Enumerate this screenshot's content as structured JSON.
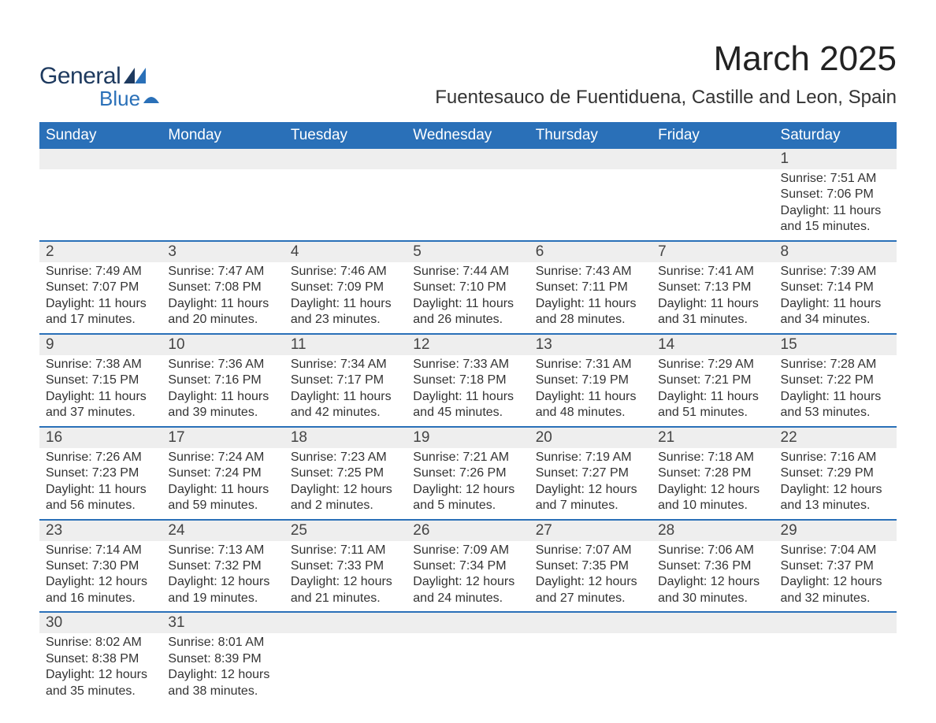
{
  "logo": {
    "text1": "General",
    "text2": "Blue"
  },
  "title": "March 2025",
  "location": "Fuentesauco de Fuentiduena, Castille and Leon, Spain",
  "colors": {
    "header_bg": "#2a70b8",
    "header_text": "#ffffff",
    "daynum_bg": "#eeeeee",
    "row_border": "#2a70b8",
    "body_text": "#333333",
    "logo_dark": "#1e3a5f",
    "logo_blue": "#2a70b8"
  },
  "weekdays": [
    "Sunday",
    "Monday",
    "Tuesday",
    "Wednesday",
    "Thursday",
    "Friday",
    "Saturday"
  ],
  "weeks": [
    [
      null,
      null,
      null,
      null,
      null,
      null,
      {
        "d": "1",
        "sr": "Sunrise: 7:51 AM",
        "ss": "Sunset: 7:06 PM",
        "dl": "Daylight: 11 hours and 15 minutes."
      }
    ],
    [
      {
        "d": "2",
        "sr": "Sunrise: 7:49 AM",
        "ss": "Sunset: 7:07 PM",
        "dl": "Daylight: 11 hours and 17 minutes."
      },
      {
        "d": "3",
        "sr": "Sunrise: 7:47 AM",
        "ss": "Sunset: 7:08 PM",
        "dl": "Daylight: 11 hours and 20 minutes."
      },
      {
        "d": "4",
        "sr": "Sunrise: 7:46 AM",
        "ss": "Sunset: 7:09 PM",
        "dl": "Daylight: 11 hours and 23 minutes."
      },
      {
        "d": "5",
        "sr": "Sunrise: 7:44 AM",
        "ss": "Sunset: 7:10 PM",
        "dl": "Daylight: 11 hours and 26 minutes."
      },
      {
        "d": "6",
        "sr": "Sunrise: 7:43 AM",
        "ss": "Sunset: 7:11 PM",
        "dl": "Daylight: 11 hours and 28 minutes."
      },
      {
        "d": "7",
        "sr": "Sunrise: 7:41 AM",
        "ss": "Sunset: 7:13 PM",
        "dl": "Daylight: 11 hours and 31 minutes."
      },
      {
        "d": "8",
        "sr": "Sunrise: 7:39 AM",
        "ss": "Sunset: 7:14 PM",
        "dl": "Daylight: 11 hours and 34 minutes."
      }
    ],
    [
      {
        "d": "9",
        "sr": "Sunrise: 7:38 AM",
        "ss": "Sunset: 7:15 PM",
        "dl": "Daylight: 11 hours and 37 minutes."
      },
      {
        "d": "10",
        "sr": "Sunrise: 7:36 AM",
        "ss": "Sunset: 7:16 PM",
        "dl": "Daylight: 11 hours and 39 minutes."
      },
      {
        "d": "11",
        "sr": "Sunrise: 7:34 AM",
        "ss": "Sunset: 7:17 PM",
        "dl": "Daylight: 11 hours and 42 minutes."
      },
      {
        "d": "12",
        "sr": "Sunrise: 7:33 AM",
        "ss": "Sunset: 7:18 PM",
        "dl": "Daylight: 11 hours and 45 minutes."
      },
      {
        "d": "13",
        "sr": "Sunrise: 7:31 AM",
        "ss": "Sunset: 7:19 PM",
        "dl": "Daylight: 11 hours and 48 minutes."
      },
      {
        "d": "14",
        "sr": "Sunrise: 7:29 AM",
        "ss": "Sunset: 7:21 PM",
        "dl": "Daylight: 11 hours and 51 minutes."
      },
      {
        "d": "15",
        "sr": "Sunrise: 7:28 AM",
        "ss": "Sunset: 7:22 PM",
        "dl": "Daylight: 11 hours and 53 minutes."
      }
    ],
    [
      {
        "d": "16",
        "sr": "Sunrise: 7:26 AM",
        "ss": "Sunset: 7:23 PM",
        "dl": "Daylight: 11 hours and 56 minutes."
      },
      {
        "d": "17",
        "sr": "Sunrise: 7:24 AM",
        "ss": "Sunset: 7:24 PM",
        "dl": "Daylight: 11 hours and 59 minutes."
      },
      {
        "d": "18",
        "sr": "Sunrise: 7:23 AM",
        "ss": "Sunset: 7:25 PM",
        "dl": "Daylight: 12 hours and 2 minutes."
      },
      {
        "d": "19",
        "sr": "Sunrise: 7:21 AM",
        "ss": "Sunset: 7:26 PM",
        "dl": "Daylight: 12 hours and 5 minutes."
      },
      {
        "d": "20",
        "sr": "Sunrise: 7:19 AM",
        "ss": "Sunset: 7:27 PM",
        "dl": "Daylight: 12 hours and 7 minutes."
      },
      {
        "d": "21",
        "sr": "Sunrise: 7:18 AM",
        "ss": "Sunset: 7:28 PM",
        "dl": "Daylight: 12 hours and 10 minutes."
      },
      {
        "d": "22",
        "sr": "Sunrise: 7:16 AM",
        "ss": "Sunset: 7:29 PM",
        "dl": "Daylight: 12 hours and 13 minutes."
      }
    ],
    [
      {
        "d": "23",
        "sr": "Sunrise: 7:14 AM",
        "ss": "Sunset: 7:30 PM",
        "dl": "Daylight: 12 hours and 16 minutes."
      },
      {
        "d": "24",
        "sr": "Sunrise: 7:13 AM",
        "ss": "Sunset: 7:32 PM",
        "dl": "Daylight: 12 hours and 19 minutes."
      },
      {
        "d": "25",
        "sr": "Sunrise: 7:11 AM",
        "ss": "Sunset: 7:33 PM",
        "dl": "Daylight: 12 hours and 21 minutes."
      },
      {
        "d": "26",
        "sr": "Sunrise: 7:09 AM",
        "ss": "Sunset: 7:34 PM",
        "dl": "Daylight: 12 hours and 24 minutes."
      },
      {
        "d": "27",
        "sr": "Sunrise: 7:07 AM",
        "ss": "Sunset: 7:35 PM",
        "dl": "Daylight: 12 hours and 27 minutes."
      },
      {
        "d": "28",
        "sr": "Sunrise: 7:06 AM",
        "ss": "Sunset: 7:36 PM",
        "dl": "Daylight: 12 hours and 30 minutes."
      },
      {
        "d": "29",
        "sr": "Sunrise: 7:04 AM",
        "ss": "Sunset: 7:37 PM",
        "dl": "Daylight: 12 hours and 32 minutes."
      }
    ],
    [
      {
        "d": "30",
        "sr": "Sunrise: 8:02 AM",
        "ss": "Sunset: 8:38 PM",
        "dl": "Daylight: 12 hours and 35 minutes."
      },
      {
        "d": "31",
        "sr": "Sunrise: 8:01 AM",
        "ss": "Sunset: 8:39 PM",
        "dl": "Daylight: 12 hours and 38 minutes."
      },
      null,
      null,
      null,
      null,
      null
    ]
  ]
}
